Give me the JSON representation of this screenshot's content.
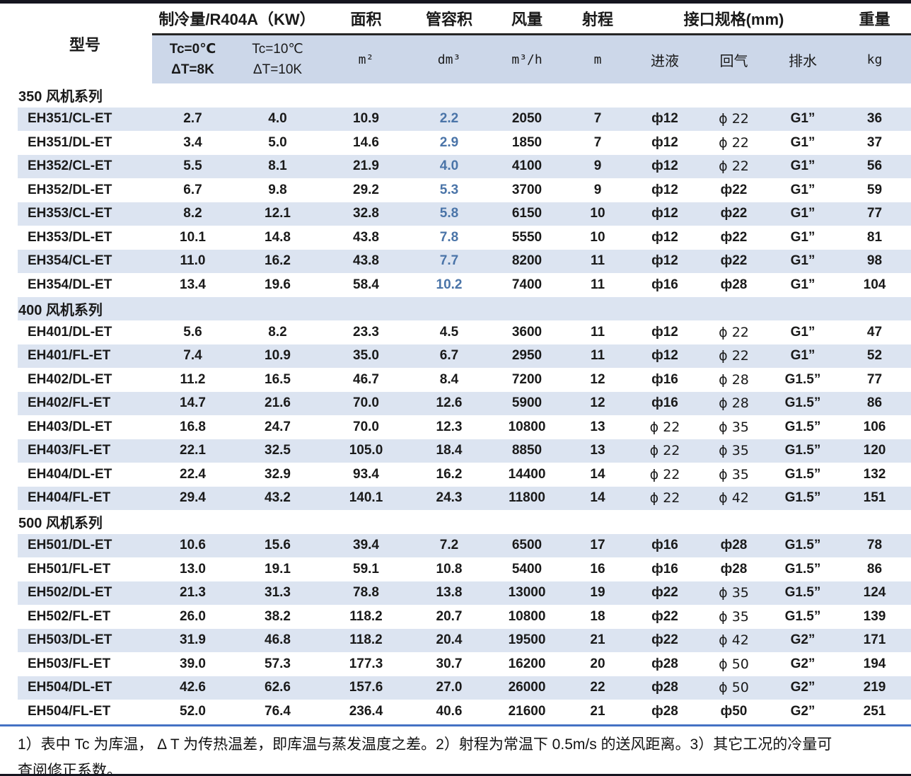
{
  "colors": {
    "stripe": "#dce4f1",
    "header_band": "#ccd7e9",
    "volume_highlight_text": "#4a74a8",
    "top_border": "#15151f",
    "footnote_divider": "#4472c4"
  },
  "table": {
    "header": {
      "model": "型号",
      "capacity_group": "制冷量/R404A（KW）",
      "capacity_sub1_line1": "Tc=0℃",
      "capacity_sub1_line2": "ΔT=8K",
      "capacity_sub2_line1": "Tc=10℃",
      "capacity_sub2_line2": "ΔT=10K",
      "area": "面积",
      "area_unit": "m²",
      "tube_volume": "管容积",
      "tube_volume_unit": "dm³",
      "air_flow": "风量",
      "air_flow_unit": "m³/h",
      "throw": "射程",
      "throw_unit": "m",
      "interface_group": "接口规格(mm)",
      "inlet": "进液",
      "gas_return": "回气",
      "drain": "排水",
      "weight": "重量",
      "weight_unit": "kg"
    },
    "sections": [
      {
        "label": "350 风机系列",
        "tube_volume_highlight": true,
        "rows": [
          {
            "model": "EH351/CL-ET",
            "tc0": "2.7",
            "tc10": "4.0",
            "area": "10.9",
            "vol": "2.2",
            "flow": "2050",
            "throw": "7",
            "inlet": "ф12",
            "ret": "ϕ 22",
            "drain": "G1”",
            "weight": "36"
          },
          {
            "model": "EH351/DL-ET",
            "tc0": "3.4",
            "tc10": "5.0",
            "area": "14.6",
            "vol": "2.9",
            "flow": "1850",
            "throw": "7",
            "inlet": "ф12",
            "ret": "ϕ 22",
            "drain": "G1”",
            "weight": "37"
          },
          {
            "model": "EH352/CL-ET",
            "tc0": "5.5",
            "tc10": "8.1",
            "area": "21.9",
            "vol": "4.0",
            "flow": "4100",
            "throw": "9",
            "inlet": "ф12",
            "ret": "ϕ 22",
            "drain": "G1”",
            "weight": "56"
          },
          {
            "model": "EH352/DL-ET",
            "tc0": "6.7",
            "tc10": "9.8",
            "area": "29.2",
            "vol": "5.3",
            "flow": "3700",
            "throw": "9",
            "inlet": "ф12",
            "ret": "ф22",
            "drain": "G1”",
            "weight": "59"
          },
          {
            "model": "EH353/CL-ET",
            "tc0": "8.2",
            "tc10": "12.1",
            "area": "32.8",
            "vol": "5.8",
            "flow": "6150",
            "throw": "10",
            "inlet": "ф12",
            "ret": "ф22",
            "drain": "G1”",
            "weight": "77"
          },
          {
            "model": "EH353/DL-ET",
            "tc0": "10.1",
            "tc10": "14.8",
            "area": "43.8",
            "vol": "7.8",
            "flow": "5550",
            "throw": "10",
            "inlet": "ф12",
            "ret": "ф22",
            "drain": "G1”",
            "weight": "81"
          },
          {
            "model": "EH354/CL-ET",
            "tc0": "11.0",
            "tc10": "16.2",
            "area": "43.8",
            "vol": "7.7",
            "flow": "8200",
            "throw": "11",
            "inlet": "ф12",
            "ret": "ф22",
            "drain": "G1”",
            "weight": "98"
          },
          {
            "model": "EH354/DL-ET",
            "tc0": "13.4",
            "tc10": "19.6",
            "area": "58.4",
            "vol": "10.2",
            "flow": "7400",
            "throw": "11",
            "inlet": "ф16",
            "ret": "ф28",
            "drain": "G1”",
            "weight": "104"
          }
        ]
      },
      {
        "label": "400 风机系列",
        "tube_volume_highlight": false,
        "rows": [
          {
            "model": "EH401/DL-ET",
            "tc0": "5.6",
            "tc10": "8.2",
            "area": "23.3",
            "vol": "4.5",
            "flow": "3600",
            "throw": "11",
            "inlet": "ф12",
            "ret": "ϕ 22",
            "drain": "G1”",
            "weight": "47"
          },
          {
            "model": "EH401/FL-ET",
            "tc0": "7.4",
            "tc10": "10.9",
            "area": "35.0",
            "vol": "6.7",
            "flow": "2950",
            "throw": "11",
            "inlet": "ф12",
            "ret": "ϕ 22",
            "drain": "G1”",
            "weight": "52"
          },
          {
            "model": "EH402/DL-ET",
            "tc0": "11.2",
            "tc10": "16.5",
            "area": "46.7",
            "vol": "8.4",
            "flow": "7200",
            "throw": "12",
            "inlet": "ф16",
            "ret": "ϕ 28",
            "drain": "G1.5”",
            "weight": "77"
          },
          {
            "model": "EH402/FL-ET",
            "tc0": "14.7",
            "tc10": "21.6",
            "area": "70.0",
            "vol": "12.6",
            "flow": "5900",
            "throw": "12",
            "inlet": "ф16",
            "ret": "ϕ 28",
            "drain": "G1.5”",
            "weight": "86"
          },
          {
            "model": "EH403/DL-ET",
            "tc0": "16.8",
            "tc10": "24.7",
            "area": "70.0",
            "vol": "12.3",
            "flow": "10800",
            "throw": "13",
            "inlet": "ϕ 22",
            "ret": "ϕ 35",
            "drain": "G1.5”",
            "weight": "106"
          },
          {
            "model": "EH403/FL-ET",
            "tc0": "22.1",
            "tc10": "32.5",
            "area": "105.0",
            "vol": "18.4",
            "flow": "8850",
            "throw": "13",
            "inlet": "ϕ 22",
            "ret": "ϕ 35",
            "drain": "G1.5”",
            "weight": "120"
          },
          {
            "model": "EH404/DL-ET",
            "tc0": "22.4",
            "tc10": "32.9",
            "area": "93.4",
            "vol": "16.2",
            "flow": "14400",
            "throw": "14",
            "inlet": "ϕ 22",
            "ret": "ϕ 35",
            "drain": "G1.5”",
            "weight": "132"
          },
          {
            "model": "EH404/FL-ET",
            "tc0": "29.4",
            "tc10": "43.2",
            "area": "140.1",
            "vol": "24.3",
            "flow": "11800",
            "throw": "14",
            "inlet": "ϕ 22",
            "ret": "ϕ 42",
            "drain": "G1.5”",
            "weight": "151"
          }
        ]
      },
      {
        "label": "500 风机系列",
        "tube_volume_highlight": false,
        "rows": [
          {
            "model": "EH501/DL-ET",
            "tc0": "10.6",
            "tc10": "15.6",
            "area": "39.4",
            "vol": "7.2",
            "flow": "6500",
            "throw": "17",
            "inlet": "ф16",
            "ret": "ф28",
            "drain": "G1.5”",
            "weight": "78"
          },
          {
            "model": "EH501/FL-ET",
            "tc0": "13.0",
            "tc10": "19.1",
            "area": "59.1",
            "vol": "10.8",
            "flow": "5400",
            "throw": "16",
            "inlet": "ф16",
            "ret": "ф28",
            "drain": "G1.5”",
            "weight": "86"
          },
          {
            "model": "EH502/DL-ET",
            "tc0": "21.3",
            "tc10": "31.3",
            "area": "78.8",
            "vol": "13.8",
            "flow": "13000",
            "throw": "19",
            "inlet": "ф22",
            "ret": "ϕ 35",
            "drain": "G1.5”",
            "weight": "124"
          },
          {
            "model": "EH502/FL-ET",
            "tc0": "26.0",
            "tc10": "38.2",
            "area": "118.2",
            "vol": "20.7",
            "flow": "10800",
            "throw": "18",
            "inlet": "ф22",
            "ret": "ϕ 35",
            "drain": "G1.5”",
            "weight": "139"
          },
          {
            "model": "EH503/DL-ET",
            "tc0": "31.9",
            "tc10": "46.8",
            "area": "118.2",
            "vol": "20.4",
            "flow": "19500",
            "throw": "21",
            "inlet": "ф22",
            "ret": "ϕ 42",
            "drain": "G2”",
            "weight": "171"
          },
          {
            "model": "EH503/FL-ET",
            "tc0": "39.0",
            "tc10": "57.3",
            "area": "177.3",
            "vol": "30.7",
            "flow": "16200",
            "throw": "20",
            "inlet": "ф28",
            "ret": "ϕ 50",
            "drain": "G2”",
            "weight": "194"
          },
          {
            "model": "EH504/DL-ET",
            "tc0": "42.6",
            "tc10": "62.6",
            "area": "157.6",
            "vol": "27.0",
            "flow": "26000",
            "throw": "22",
            "inlet": "ф28",
            "ret": "ϕ 50",
            "drain": "G2”",
            "weight": "219"
          },
          {
            "model": "EH504/FL-ET",
            "tc0": "52.0",
            "tc10": "76.4",
            "area": "236.4",
            "vol": "40.6",
            "flow": "21600",
            "throw": "21",
            "inlet": "ф28",
            "ret": "ф50",
            "drain": "G2”",
            "weight": "251"
          }
        ]
      }
    ]
  },
  "footnote": {
    "lines": [
      "1）表中 Tc 为库温， Δ T 为传热温差，即库温与蒸发温度之差。2）射程为常温下 0.5m/s 的送风距离。3）其它工况的冷量可",
      "查阅修正系数。"
    ]
  }
}
